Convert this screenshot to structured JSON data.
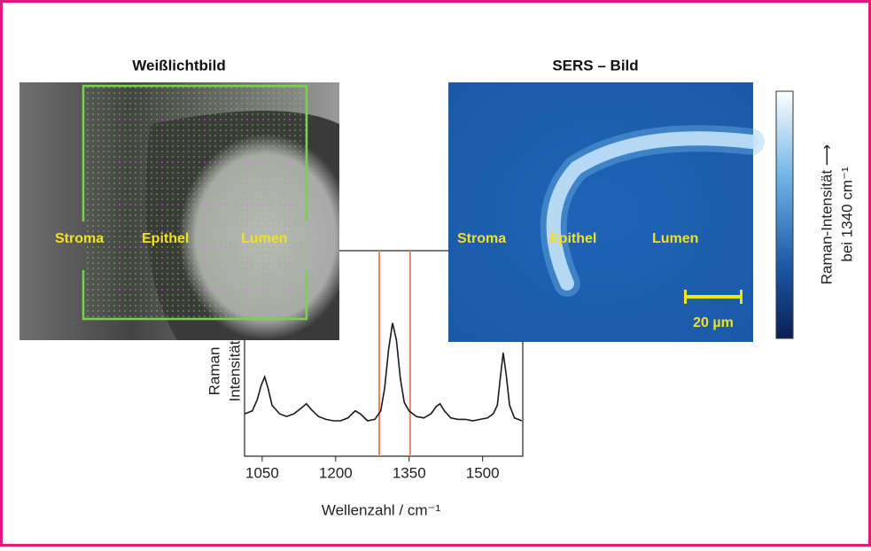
{
  "chart_data": {
    "type": "line",
    "xlabel": "Wellenzahl / cm⁻¹",
    "ylabel": [
      "Raman",
      "Intensität"
    ],
    "xlim": [
      1014,
      1582
    ],
    "xticks": [
      1050,
      1200,
      1350,
      1500
    ],
    "ylim": [
      0,
      1.45
    ],
    "band": [
      1289,
      1352
    ],
    "band_color": "#f08060",
    "series": [
      {
        "color": "#1a1a1a",
        "x": [
          1015,
          1030,
          1040,
          1048,
          1055,
          1062,
          1070,
          1085,
          1100,
          1115,
          1130,
          1140,
          1150,
          1165,
          1180,
          1195,
          1210,
          1225,
          1240,
          1250,
          1265,
          1280,
          1292,
          1300,
          1308,
          1316,
          1324,
          1332,
          1340,
          1350,
          1365,
          1380,
          1395,
          1405,
          1413,
          1422,
          1435,
          1450,
          1465,
          1480,
          1495,
          1510,
          1522,
          1530,
          1536,
          1542,
          1548,
          1555,
          1565,
          1580
        ],
        "values": [
          0.3,
          0.32,
          0.4,
          0.5,
          0.56,
          0.48,
          0.36,
          0.3,
          0.28,
          0.3,
          0.34,
          0.37,
          0.33,
          0.28,
          0.26,
          0.25,
          0.25,
          0.27,
          0.32,
          0.3,
          0.25,
          0.26,
          0.32,
          0.48,
          0.75,
          0.94,
          0.82,
          0.55,
          0.38,
          0.32,
          0.28,
          0.27,
          0.3,
          0.35,
          0.37,
          0.32,
          0.27,
          0.26,
          0.26,
          0.25,
          0.26,
          0.27,
          0.3,
          0.36,
          0.55,
          0.73,
          0.58,
          0.36,
          0.27,
          0.25
        ]
      }
    ]
  },
  "left_panel": {
    "title": "Weißlichtbild",
    "labels": [
      "Stroma",
      "Epithel",
      "Lumen"
    ]
  },
  "right_panel": {
    "title": "SERS – Bild",
    "labels": [
      "Stroma",
      "Epithel",
      "Lumen"
    ],
    "scale_bar": "20 µm"
  },
  "colorbar": {
    "label": [
      "Raman-Intensität ⟶",
      "bei 1340 cm⁻¹"
    ]
  }
}
